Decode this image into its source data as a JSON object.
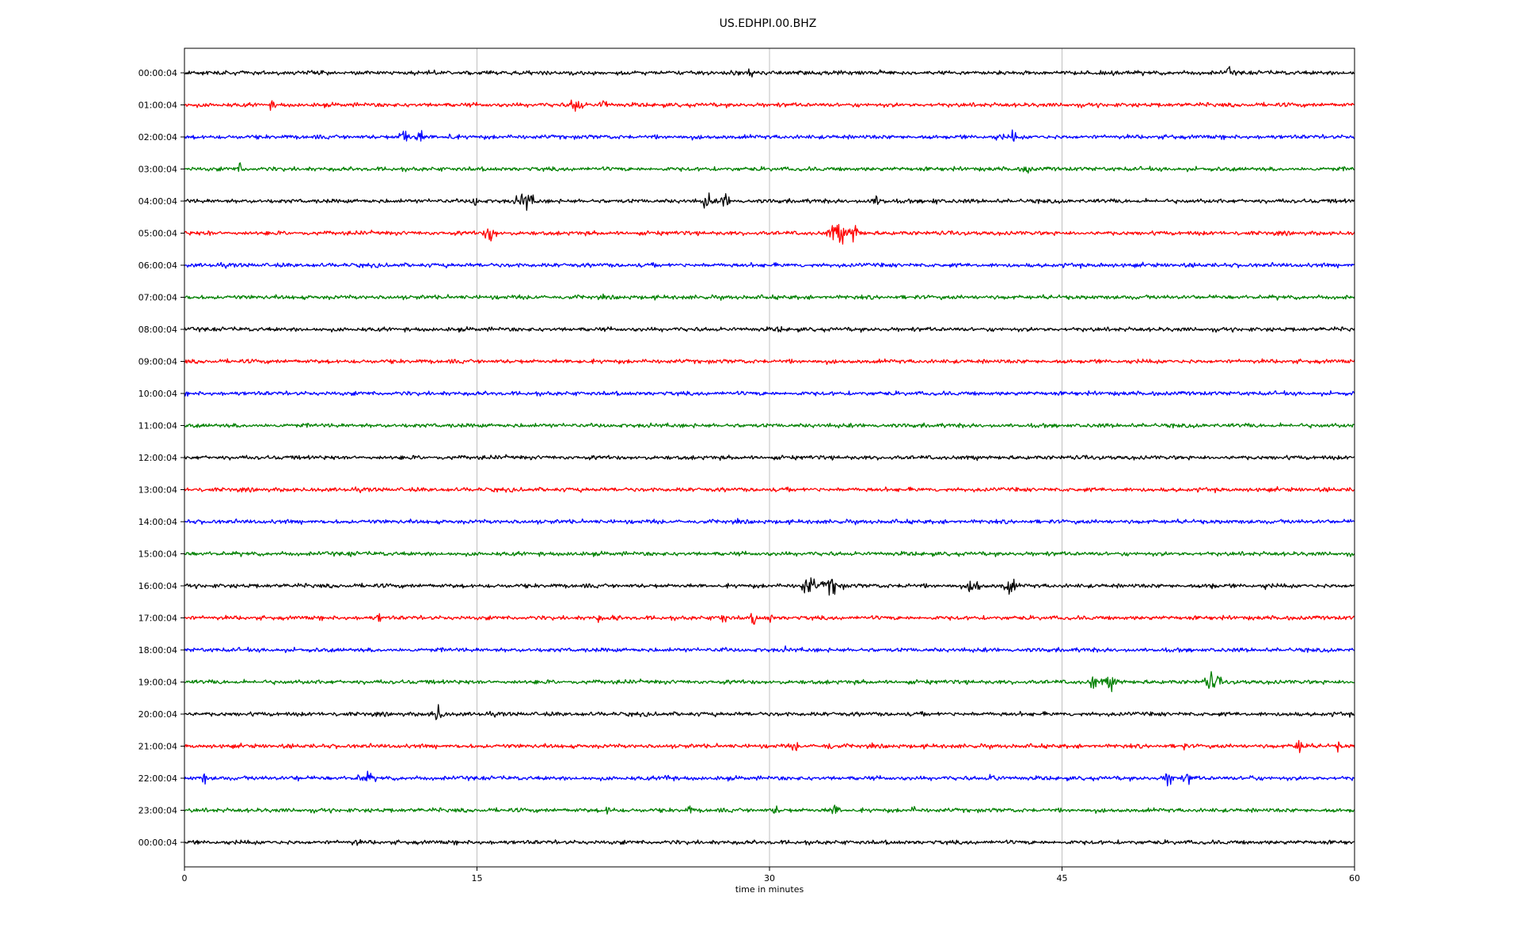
{
  "chart_data": {
    "type": "line",
    "title": "US.EDHPI.00.BHZ",
    "xlabel": "time in minutes",
    "ylabel": "",
    "xlim": [
      0,
      60
    ],
    "xticks": [
      "0",
      "15",
      "30",
      "45",
      "60"
    ],
    "grid": "vertical at x ticks",
    "colors": [
      "#000000",
      "#ff0000",
      "#0000ff",
      "#008000"
    ],
    "rows": [
      {
        "label": "00:00:04",
        "color": "#000000",
        "events": [
          [
            29,
            0.6,
            0.3
          ],
          [
            35.5,
            0.5,
            0.6
          ],
          [
            53.6,
            0.7,
            0.4
          ]
        ]
      },
      {
        "label": "01:00:04",
        "color": "#ff0000",
        "events": [
          [
            4.5,
            0.6,
            0.4
          ],
          [
            20.1,
            1.3,
            0.5
          ],
          [
            21.5,
            1.0,
            0.3
          ]
        ]
      },
      {
        "label": "02:00:04",
        "color": "#0000ff",
        "events": [
          [
            11.3,
            1.4,
            0.4
          ],
          [
            12.1,
            0.9,
            0.5
          ],
          [
            13.6,
            0.7,
            0.4
          ],
          [
            41.8,
            0.5,
            0.5
          ],
          [
            42.5,
            1.1,
            0.2
          ],
          [
            50.6,
            0.8,
            0.15
          ]
        ]
      },
      {
        "label": "03:00:04",
        "color": "#008000",
        "events": [
          [
            2.9,
            1.6,
            0.15
          ],
          [
            2.8,
            0.5,
            0.5
          ],
          [
            43.2,
            0.9,
            0.3
          ]
        ]
      },
      {
        "label": "04:00:04",
        "color": "#000000",
        "events": [
          [
            14.9,
            0.9,
            0.3
          ],
          [
            17.5,
            1.2,
            0.8
          ],
          [
            26.8,
            1.2,
            0.4
          ],
          [
            27.7,
            1.1,
            0.4
          ],
          [
            35.5,
            0.7,
            0.8
          ],
          [
            38.5,
            0.5,
            0.5
          ]
        ]
      },
      {
        "label": "05:00:04",
        "color": "#ff0000",
        "events": [
          [
            1.2,
            0.5,
            0.3
          ],
          [
            15.7,
            1.3,
            0.5
          ],
          [
            33.5,
            1.4,
            0.8
          ],
          [
            34.3,
            1.3,
            0.6
          ]
        ]
      },
      {
        "label": "06:00:04",
        "color": "#0000ff",
        "events": [
          [
            47.0,
            0.5,
            0.3
          ]
        ]
      },
      {
        "label": "07:00:04",
        "color": "#008000",
        "events": [
          [
            18.0,
            0.4,
            0.5
          ]
        ]
      },
      {
        "label": "08:00:04",
        "color": "#000000",
        "events": [
          [
            30.5,
            0.4,
            0.5
          ]
        ]
      },
      {
        "label": "09:00:04",
        "color": "#ff0000",
        "events": [
          [
            20.3,
            0.9,
            0.15
          ]
        ]
      },
      {
        "label": "10:00:04",
        "color": "#0000ff",
        "events": []
      },
      {
        "label": "11:00:04",
        "color": "#008000",
        "events": []
      },
      {
        "label": "12:00:04",
        "color": "#000000",
        "events": []
      },
      {
        "label": "13:00:04",
        "color": "#ff0000",
        "events": []
      },
      {
        "label": "14:00:04",
        "color": "#0000ff",
        "events": []
      },
      {
        "label": "15:00:04",
        "color": "#008000",
        "events": [
          [
            8.6,
            0.7,
            0.2
          ],
          [
            20.0,
            0.4,
            0.6
          ]
        ]
      },
      {
        "label": "16:00:04",
        "color": "#000000",
        "events": [
          [
            32.0,
            1.4,
            0.6
          ],
          [
            33.2,
            1.2,
            0.8
          ],
          [
            37.0,
            0.5,
            0.4
          ],
          [
            40.5,
            1.0,
            0.6
          ],
          [
            42.3,
            1.1,
            0.6
          ],
          [
            52.6,
            0.9,
            0.3
          ],
          [
            55.5,
            0.5,
            0.3
          ]
        ]
      },
      {
        "label": "17:00:04",
        "color": "#ff0000",
        "events": [
          [
            10.0,
            0.7,
            0.3
          ],
          [
            21.2,
            0.7,
            0.3
          ],
          [
            22.1,
            0.6,
            0.3
          ],
          [
            27.6,
            1.1,
            0.3
          ],
          [
            29.2,
            0.9,
            0.3
          ],
          [
            30.0,
            0.7,
            0.3
          ]
        ]
      },
      {
        "label": "18:00:04",
        "color": "#0000ff",
        "events": [
          [
            27.6,
            0.5,
            0.3
          ],
          [
            30.9,
            0.5,
            0.3
          ]
        ]
      },
      {
        "label": "19:00:04",
        "color": "#008000",
        "events": [
          [
            46.6,
            1.3,
            0.3
          ],
          [
            47.5,
            0.9,
            0.8
          ],
          [
            52.7,
            1.2,
            0.7
          ]
        ]
      },
      {
        "label": "20:00:04",
        "color": "#000000",
        "events": [
          [
            13.0,
            1.1,
            0.5
          ],
          [
            56.7,
            0.7,
            0.15
          ]
        ]
      },
      {
        "label": "21:00:04",
        "color": "#ff0000",
        "events": [
          [
            31.3,
            0.7,
            0.4
          ],
          [
            33.0,
            0.7,
            0.4
          ],
          [
            51.2,
            0.8,
            0.2
          ],
          [
            57.2,
            1.0,
            0.6
          ],
          [
            59.2,
            0.8,
            0.2
          ]
        ]
      },
      {
        "label": "22:00:04",
        "color": "#0000ff",
        "events": [
          [
            1.0,
            1.1,
            0.2
          ],
          [
            5.8,
            0.5,
            0.3
          ],
          [
            9.3,
            0.8,
            0.8
          ],
          [
            24.8,
            1.1,
            0.3
          ],
          [
            41.5,
            0.6,
            0.6
          ],
          [
            50.5,
            1.1,
            0.5
          ],
          [
            51.5,
            0.7,
            0.6
          ],
          [
            54.7,
            0.6,
            0.3
          ]
        ]
      },
      {
        "label": "23:00:04",
        "color": "#008000",
        "events": [
          [
            21.8,
            0.8,
            0.4
          ],
          [
            25.9,
            0.7,
            0.3
          ],
          [
            30.3,
            0.7,
            0.3
          ],
          [
            33.3,
            0.8,
            0.6
          ],
          [
            37.4,
            0.5,
            0.3
          ]
        ]
      },
      {
        "label": "00:00:04",
        "color": "#000000",
        "events": [
          [
            8.8,
            0.5,
            0.5
          ],
          [
            15.0,
            0.4,
            0.3
          ]
        ]
      }
    ]
  }
}
